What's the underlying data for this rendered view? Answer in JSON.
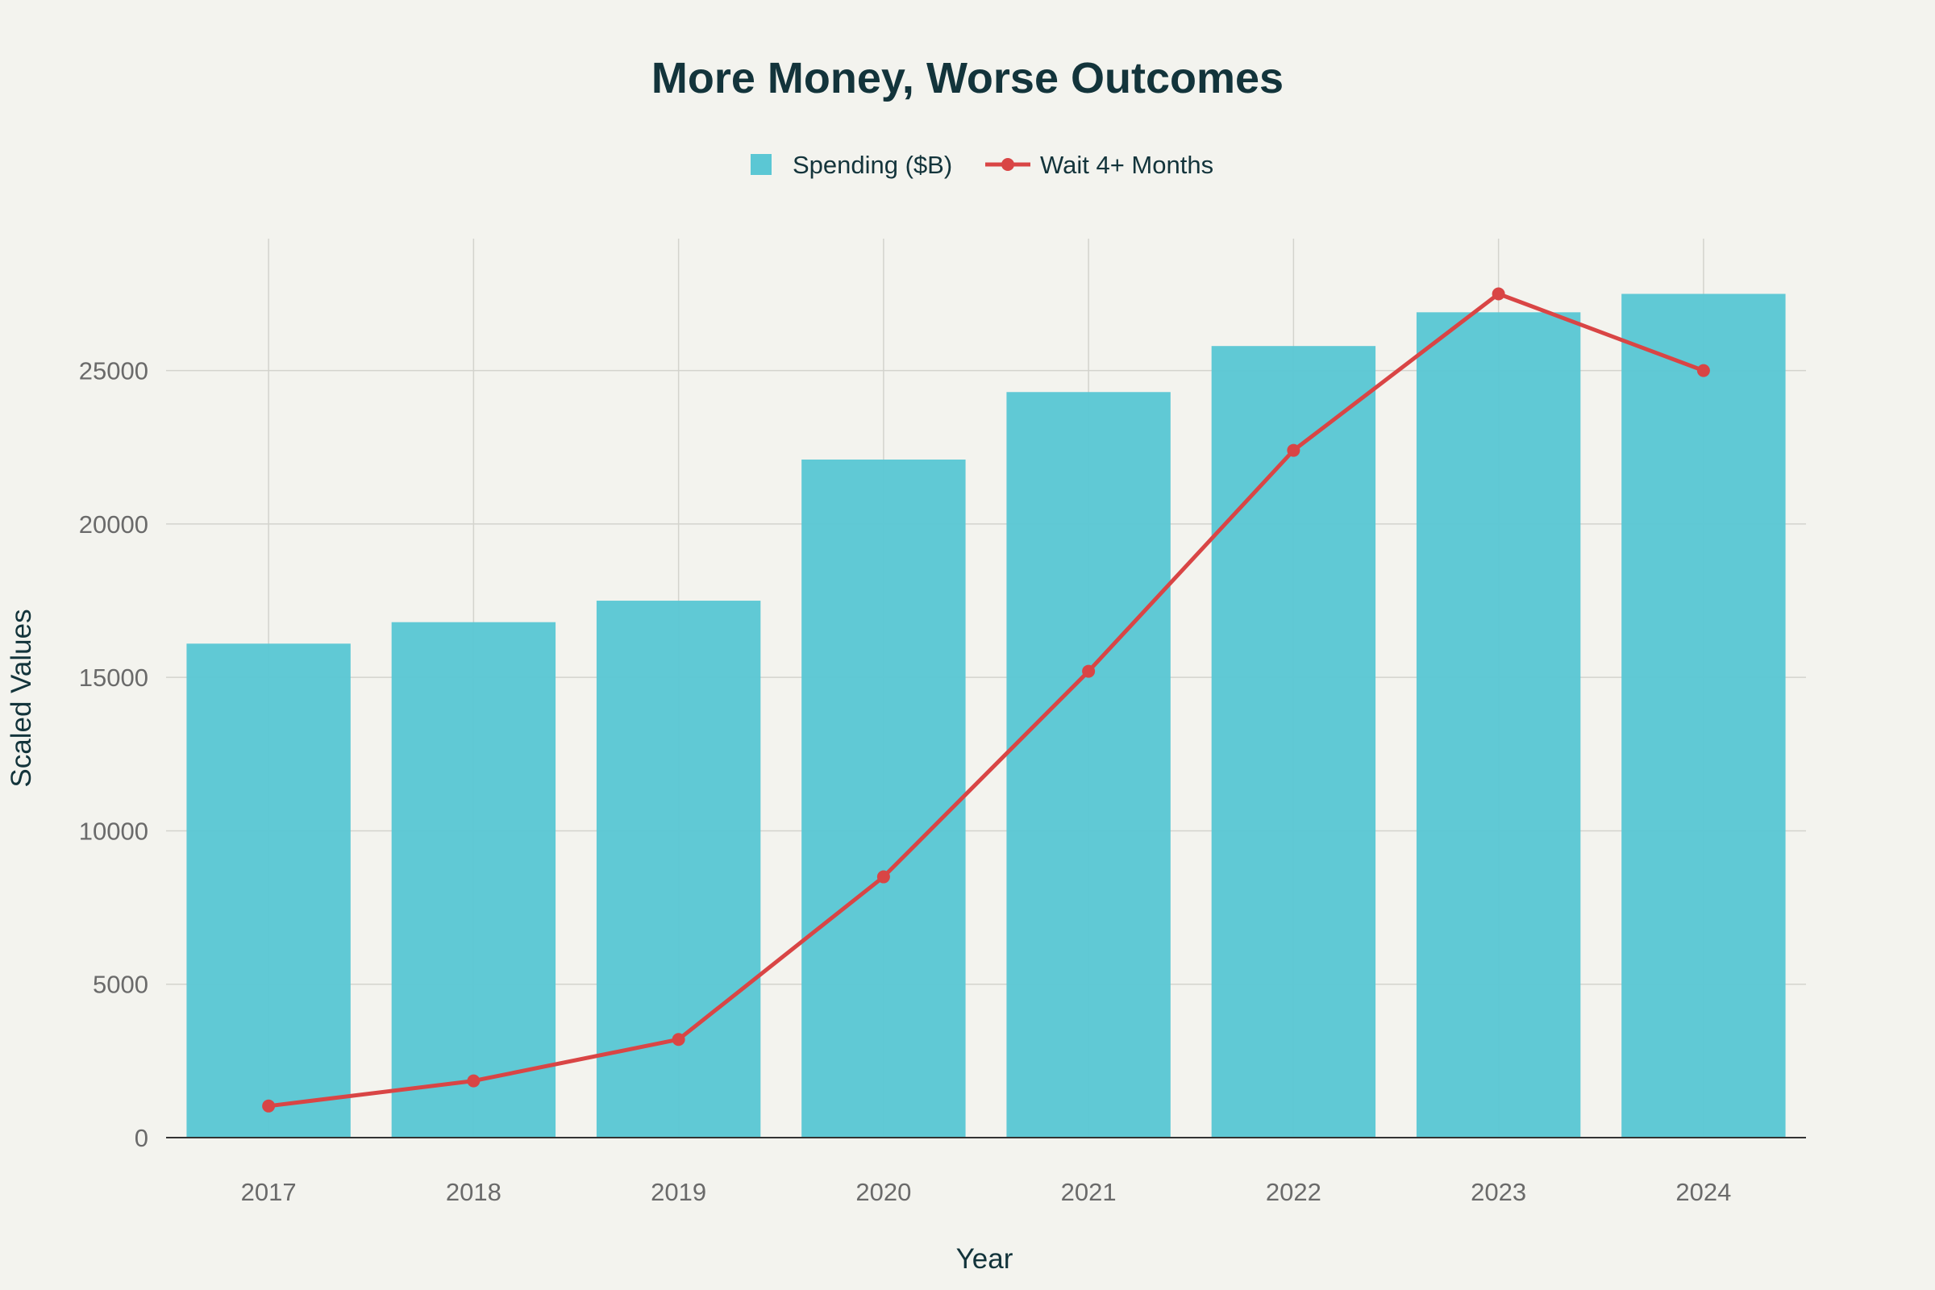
{
  "chart_data": {
    "type": "bar",
    "title": "More Money, Worse Outcomes",
    "xlabel": "Year",
    "ylabel": "Scaled Values",
    "categories": [
      "2017",
      "2018",
      "2019",
      "2020",
      "2021",
      "2022",
      "2023",
      "2024"
    ],
    "series": [
      {
        "name": "Spending ($B)",
        "type": "bar",
        "color": "#5bc7d4",
        "values": [
          16100,
          16800,
          17500,
          22100,
          24300,
          25800,
          26900,
          27500
        ]
      },
      {
        "name": "Wait 4+ Months",
        "type": "line",
        "color": "#d94545",
        "values": [
          1030,
          1850,
          3200,
          8500,
          15200,
          22400,
          27500,
          25000
        ]
      }
    ],
    "ylim": [
      0,
      29300
    ],
    "yticks": [
      0,
      5000,
      10000,
      15000,
      20000,
      25000
    ],
    "grid": true,
    "legend_position": "top-center"
  }
}
